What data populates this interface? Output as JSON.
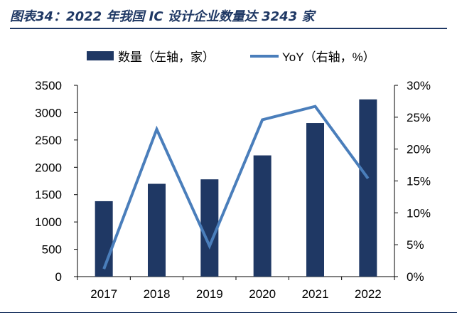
{
  "figure": {
    "title": "图表34：2022 年我国 IC 设计企业数量达 3243 家"
  },
  "chart_data": {
    "type": "bar",
    "title": "图表34：2022 年我国 IC 设计企业数量达 3243 家",
    "categories": [
      "2017",
      "2018",
      "2019",
      "2020",
      "2021",
      "2022"
    ],
    "series": [
      {
        "name": "数量（左轴，家）",
        "type": "bar",
        "axis": "left",
        "color": "#1f3864",
        "values": [
          1380,
          1698,
          1780,
          2218,
          2810,
          3243
        ]
      },
      {
        "name": "YoY（右轴，%）",
        "type": "line",
        "axis": "right",
        "color": "#4a7ebb",
        "values": [
          1.2,
          23.1,
          4.8,
          24.6,
          26.7,
          15.4
        ]
      }
    ],
    "left_axis": {
      "min": 0,
      "max": 3500,
      "ticks": [
        0,
        500,
        1000,
        1500,
        2000,
        2500,
        3000,
        3500
      ],
      "tick_labels": [
        "0",
        "500",
        "1000",
        "1500",
        "2000",
        "2500",
        "3000",
        "3500"
      ]
    },
    "right_axis": {
      "min": 0,
      "max": 30,
      "ticks": [
        0,
        5,
        10,
        15,
        20,
        25,
        30
      ],
      "tick_labels": [
        "0%",
        "5%",
        "10%",
        "15%",
        "20%",
        "25%",
        "30%"
      ]
    },
    "legend_position": "top",
    "grid": false
  }
}
